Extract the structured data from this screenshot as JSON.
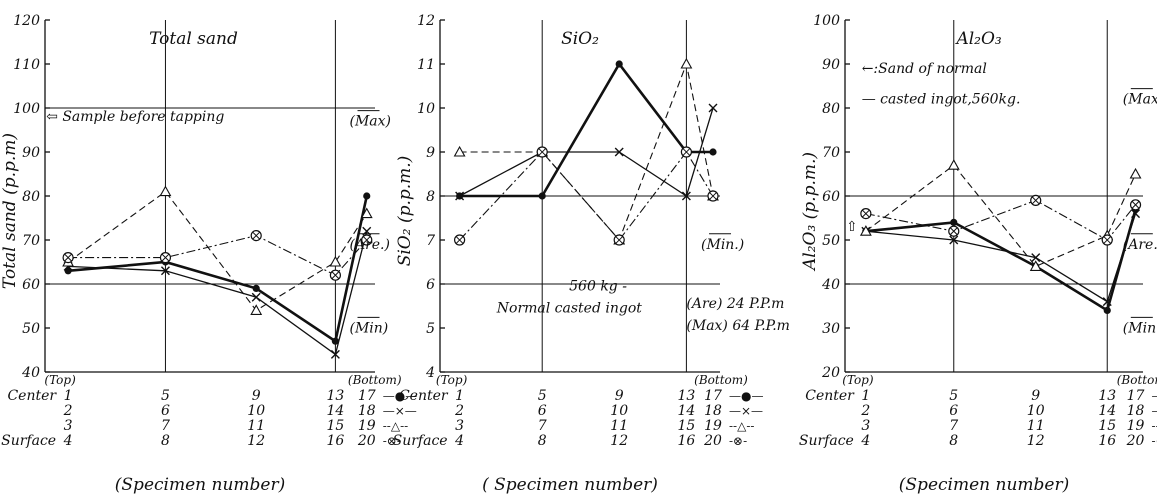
{
  "chart_data": [
    {
      "type": "line",
      "title": "Total sand",
      "ylabel": "Total sand (p.p.m)",
      "xlabel": "(Specimen number)",
      "ylim": [
        40,
        120
      ],
      "yticks": [
        "40",
        "50",
        "60",
        "70",
        "80",
        "90",
        "100",
        "110",
        "120"
      ],
      "positions": [
        1,
        2,
        3,
        4,
        5
      ],
      "grid": {
        "h": [
          60,
          100
        ],
        "v": [
          2,
          4
        ]
      },
      "series": [
        {
          "name": "Center",
          "values": [
            63,
            65,
            59,
            47,
            80
          ],
          "style": "solid",
          "width": 2.6,
          "marker": "dot"
        },
        {
          "name": "",
          "values": [
            64,
            63,
            57,
            44,
            72
          ],
          "style": "solid",
          "width": 1.3,
          "marker": "x"
        },
        {
          "name": "",
          "values": [
            65,
            81,
            54,
            65,
            76
          ],
          "style": "dashed",
          "width": 1.1,
          "marker": "triangle"
        },
        {
          "name": "Surface",
          "values": [
            66,
            66,
            71,
            62,
            70
          ],
          "style": "dashdot",
          "width": 1.1,
          "marker": "circlex"
        }
      ],
      "annotations": [
        {
          "text": "⇦ Sample before tapping",
          "x": 0.05,
          "y": 97,
          "role": "text"
        },
        {
          "text": "(Max)",
          "x": 4.45,
          "y": 96,
          "role": "tag"
        },
        {
          "text": "(Are.)",
          "x": 4.45,
          "y": 68,
          "role": "tag"
        },
        {
          "text": "(Min)",
          "x": 4.45,
          "y": 49,
          "role": "tag"
        }
      ],
      "table": {
        "top_label": "(Top)",
        "bottom_label": "(Bottom)",
        "rows": [
          {
            "label": "Center",
            "nums": [
              "1",
              "5",
              "9",
              "13",
              "17"
            ],
            "legend": "—●—"
          },
          {
            "label": "",
            "nums": [
              "2",
              "6",
              "10",
              "14",
              "18"
            ],
            "legend": "—×—"
          },
          {
            "label": "",
            "nums": [
              "3",
              "7",
              "11",
              "15",
              "19"
            ],
            "legend": "--△--"
          },
          {
            "label": "Surface",
            "nums": [
              "4",
              "8",
              "12",
              "16",
              "20"
            ],
            "legend": "-⊗-"
          }
        ]
      }
    },
    {
      "type": "line",
      "title": "SiO₂",
      "ylabel": "SiO₂ (p.p.m.)",
      "xlabel": "( Specimen number)",
      "ylim": [
        4,
        12
      ],
      "yticks": [
        "4",
        "5",
        "6",
        "7",
        "8",
        "9",
        "10",
        "11",
        "12"
      ],
      "positions": [
        1,
        2,
        3,
        4,
        5
      ],
      "grid": {
        "h": [
          6,
          8
        ],
        "v": [
          2,
          4
        ]
      },
      "series": [
        {
          "name": "Center",
          "values": [
            8,
            8,
            11,
            9,
            9
          ],
          "style": "solid",
          "width": 2.6,
          "marker": "dot"
        },
        {
          "name": "",
          "values": [
            8,
            9,
            9,
            8,
            10
          ],
          "style": "solid",
          "width": 1.3,
          "marker": "x"
        },
        {
          "name": "",
          "values": [
            9,
            9,
            7,
            11,
            8
          ],
          "style": "dashed",
          "width": 1.1,
          "marker": "triangle"
        },
        {
          "name": "Surface",
          "values": [
            7,
            9,
            7,
            9,
            8
          ],
          "style": "dashdot",
          "width": 1.1,
          "marker": "circlex"
        }
      ],
      "annotations": [
        {
          "text": "(Min.)",
          "x": 4.55,
          "y": 6.8,
          "role": "tag"
        },
        {
          "text": "560 kg -",
          "x": 2.35,
          "y": 5.85,
          "role": "text"
        },
        {
          "text": "Normal casted ingot",
          "x": 1.45,
          "y": 5.35,
          "role": "text"
        },
        {
          "text": "(Are) 24 P.P.m",
          "x": 4.0,
          "y": 5.45,
          "role": "text"
        },
        {
          "text": "(Max) 64 P.P.m",
          "x": 4.0,
          "y": 4.95,
          "role": "text"
        }
      ],
      "table": {
        "top_label": "(Top)",
        "bottom_label": "(Bottom)",
        "rows": [
          {
            "label": "Center",
            "nums": [
              "1",
              "5",
              "9",
              "13",
              "17"
            ],
            "legend": "—●—"
          },
          {
            "label": "",
            "nums": [
              "2",
              "6",
              "10",
              "14",
              "18"
            ],
            "legend": "—×—"
          },
          {
            "label": "",
            "nums": [
              "3",
              "7",
              "11",
              "15",
              "19"
            ],
            "legend": "--△--"
          },
          {
            "label": "Surface",
            "nums": [
              "4",
              "8",
              "12",
              "16",
              "20"
            ],
            "legend": "-⊗-"
          }
        ]
      }
    },
    {
      "type": "line",
      "title": "Al₂O₃",
      "ylabel": "Al₂O₃ (p.p.m.)",
      "xlabel": "(Specimen number)",
      "ylim": [
        20,
        100
      ],
      "yticks": [
        "20",
        "30",
        "40",
        "50",
        "60",
        "70",
        "80",
        "90",
        "100"
      ],
      "positions": [
        1,
        2,
        3,
        4,
        5
      ],
      "grid": {
        "h": [
          40,
          60
        ],
        "v": [
          2,
          4
        ]
      },
      "series": [
        {
          "name": "Center",
          "values": [
            52,
            54,
            44,
            34,
            57
          ],
          "style": "solid",
          "width": 2.6,
          "marker": "dot"
        },
        {
          "name": "",
          "values": [
            52,
            50,
            46,
            36,
            56
          ],
          "style": "solid",
          "width": 1.3,
          "marker": "x"
        },
        {
          "name": "",
          "values": [
            52,
            67,
            44,
            51,
            65
          ],
          "style": "dashed",
          "width": 1.1,
          "marker": "triangle"
        },
        {
          "name": "Surface",
          "values": [
            56,
            52,
            59,
            50,
            58
          ],
          "style": "dashdot",
          "width": 1.1,
          "marker": "circlex"
        }
      ],
      "annotations": [
        {
          "text": "←:Sand of normal",
          "x": 0.8,
          "y": 88,
          "role": "text"
        },
        {
          "text": "— casted ingot,560kg.",
          "x": 0.8,
          "y": 81,
          "role": "text"
        },
        {
          "text": "(Max.)",
          "x": 4.55,
          "y": 81,
          "role": "tag"
        },
        {
          "text": "(Are.)",
          "x": 4.55,
          "y": 48,
          "role": "tag"
        },
        {
          "text": "(Min.)",
          "x": 4.55,
          "y": 29,
          "role": "tag"
        },
        {
          "text": "⇧",
          "x": 0.05,
          "y": 52,
          "role": "text"
        }
      ],
      "table": {
        "top_label": "(Top)",
        "bottom_label": "(Bottom)",
        "rows": [
          {
            "label": "Center",
            "nums": [
              "1",
              "5",
              "9",
              "13",
              "17"
            ],
            "legend": "—●—"
          },
          {
            "label": "",
            "nums": [
              "2",
              "6",
              "10",
              "14",
              "18"
            ],
            "legend": "—×—"
          },
          {
            "label": "",
            "nums": [
              "3",
              "7",
              "11",
              "15",
              "19"
            ],
            "legend": "--△--"
          },
          {
            "label": "Surface",
            "nums": [
              "4",
              "8",
              "12",
              "16",
              "20"
            ],
            "legend": "-⊗-"
          }
        ]
      }
    }
  ]
}
